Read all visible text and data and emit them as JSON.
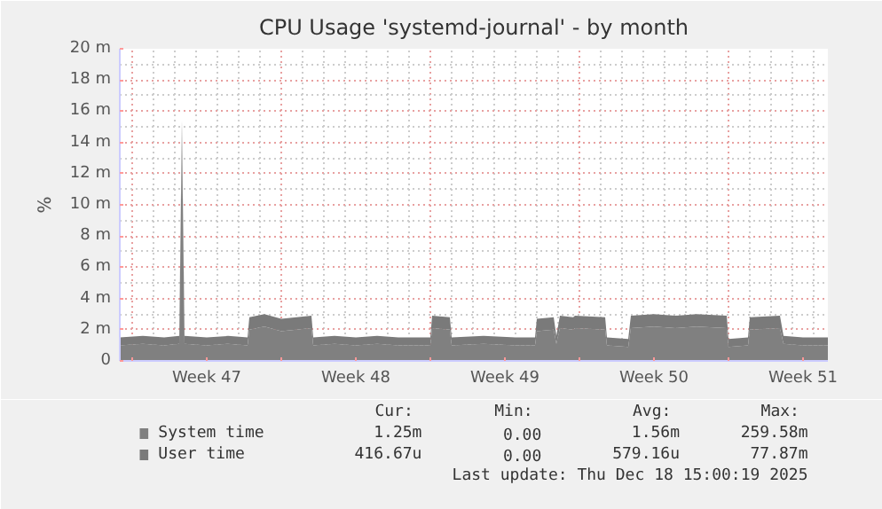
{
  "chart_data": {
    "type": "area",
    "stacked": true,
    "title": "CPU Usage 'systemd-journal' - by month",
    "ylabel": "%",
    "x": [
      "2025-11-16T10:00",
      "2025-11-17T12:00",
      "2025-11-18T12:00",
      "2025-11-19T05:00",
      "2025-11-19T08:00",
      "2025-11-19T11:00",
      "2025-11-20T12:00",
      "2025-11-21T12:00",
      "2025-11-22T10:00",
      "2025-11-22T12:00",
      "2025-11-23T05:00",
      "2025-11-24T00:00",
      "2025-11-25T10:00",
      "2025-11-25T12:00",
      "2025-11-26T12:00",
      "2025-11-27T12:00",
      "2025-11-28T12:00",
      "2025-11-29T12:00",
      "2025-12-01T00:00",
      "2025-12-01T02:00",
      "2025-12-01T22:00",
      "2025-12-02T00:00",
      "2025-12-03T12:00",
      "2025-12-05T00:00",
      "2025-12-05T22:00",
      "2025-12-06T00:00",
      "2025-12-06T19:00",
      "2025-12-06T22:00",
      "2025-12-07T02:00",
      "2025-12-07T17:00",
      "2025-12-07T19:00",
      "2025-12-09T05:00",
      "2025-12-09T07:00",
      "2025-12-10T07:00",
      "2025-12-10T10:00",
      "2025-12-11T12:00",
      "2025-12-12T12:00",
      "2025-12-13T12:00",
      "2025-12-14T22:00",
      "2025-12-15T00:00",
      "2025-12-15T22:00",
      "2025-12-16T00:00",
      "2025-12-17T10:00",
      "2025-12-17T14:00",
      "2025-12-18T12:00",
      "2025-12-19T16:00"
    ],
    "series": [
      {
        "name": "System time",
        "color": "#808080",
        "values": [
          1.0,
          1.1,
          1.0,
          1.1,
          14.8,
          1.1,
          1.0,
          1.1,
          1.0,
          2.0,
          2.2,
          1.9,
          2.1,
          1.0,
          1.1,
          1.0,
          1.1,
          1.0,
          1.0,
          2.1,
          2.0,
          1.0,
          1.1,
          1.0,
          1.0,
          1.9,
          2.0,
          1.1,
          2.1,
          2.0,
          2.1,
          2.0,
          1.0,
          0.9,
          2.1,
          2.2,
          2.1,
          2.2,
          2.1,
          0.9,
          1.0,
          2.0,
          2.1,
          1.1,
          1.0,
          1.0
        ]
      },
      {
        "name": "User time",
        "color": "#7a7a7a",
        "values": [
          0.5,
          0.5,
          0.5,
          0.5,
          0.6,
          0.5,
          0.5,
          0.5,
          0.5,
          0.8,
          0.8,
          0.8,
          0.8,
          0.5,
          0.5,
          0.5,
          0.5,
          0.5,
          0.5,
          0.8,
          0.8,
          0.5,
          0.5,
          0.5,
          0.5,
          0.8,
          0.8,
          0.5,
          0.8,
          0.8,
          0.8,
          0.8,
          0.5,
          0.5,
          0.8,
          0.8,
          0.8,
          0.8,
          0.8,
          0.5,
          0.5,
          0.8,
          0.8,
          0.5,
          0.5,
          0.5
        ]
      }
    ],
    "xlim": [
      "2025-11-16T10:00",
      "2025-12-19T16:00"
    ],
    "xticks": [
      {
        "value": "2025-11-17",
        "label": null
      },
      {
        "value": "2025-11-20T12:00",
        "label": "Week 47"
      },
      {
        "value": "2025-11-24",
        "label": null
      },
      {
        "value": "2025-11-27T12:00",
        "label": "Week 48"
      },
      {
        "value": "2025-12-01",
        "label": null
      },
      {
        "value": "2025-12-04T12:00",
        "label": "Week 49"
      },
      {
        "value": "2025-12-08",
        "label": null
      },
      {
        "value": "2025-12-11T12:00",
        "label": "Week 50"
      },
      {
        "value": "2025-12-15",
        "label": null
      },
      {
        "value": "2025-12-18T12:00",
        "label": "Week 51"
      }
    ],
    "ylim": [
      0,
      20
    ],
    "yticks": [
      {
        "value": 0,
        "label": "0"
      },
      {
        "value": 2,
        "label": "2 m"
      },
      {
        "value": 4,
        "label": "4 m"
      },
      {
        "value": 6,
        "label": "6 m"
      },
      {
        "value": 8,
        "label": "8 m"
      },
      {
        "value": 10,
        "label": "10 m"
      },
      {
        "value": 12,
        "label": "12 m"
      },
      {
        "value": 14,
        "label": "14 m"
      },
      {
        "value": 16,
        "label": "16 m"
      },
      {
        "value": 18,
        "label": "18 m"
      },
      {
        "value": 20,
        "label": "20 m"
      }
    ],
    "grid": true,
    "legend": "bottom",
    "annotations": [
      "Cur:",
      "Min:",
      "Avg:",
      "Max:",
      "1.25m",
      "0.00",
      "1.56m",
      "259.58m",
      "416.67u",
      "0.00",
      "579.16u",
      "77.87m",
      "Last update: Thu Dec 18 15:00:19 2025"
    ]
  }
}
